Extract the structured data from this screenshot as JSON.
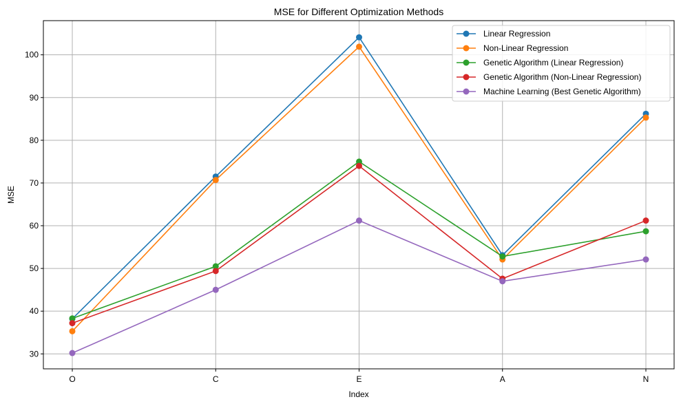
{
  "chart_data": {
    "type": "line",
    "title": "MSE for Different Optimization Methods",
    "xlabel": "Index",
    "ylabel": "MSE",
    "categories": [
      "O",
      "C",
      "E",
      "A",
      "N"
    ],
    "ylim": [
      26.5,
      108
    ],
    "yticks": [
      30,
      40,
      50,
      60,
      70,
      80,
      90,
      100
    ],
    "grid": true,
    "legend_position": "top-right",
    "series": [
      {
        "name": "Linear Regression",
        "color": "#1f77b4",
        "values": [
          38.2,
          71.5,
          104.1,
          53.1,
          86.2
        ]
      },
      {
        "name": "Non-Linear Regression",
        "color": "#ff7f0e",
        "values": [
          35.3,
          70.7,
          101.9,
          52.1,
          85.3
        ]
      },
      {
        "name": "Genetic Algorithm (Linear Regression)",
        "color": "#2ca02c",
        "values": [
          38.3,
          50.5,
          75.0,
          52.8,
          58.7
        ]
      },
      {
        "name": "Genetic Algorithm (Non-Linear Regression)",
        "color": "#d62728",
        "values": [
          37.2,
          49.4,
          74.0,
          47.6,
          61.2
        ]
      },
      {
        "name": "Machine Learning (Best Genetic Algorithm)",
        "color": "#9467bd",
        "values": [
          30.2,
          45.0,
          61.2,
          47.0,
          52.1
        ]
      }
    ]
  }
}
